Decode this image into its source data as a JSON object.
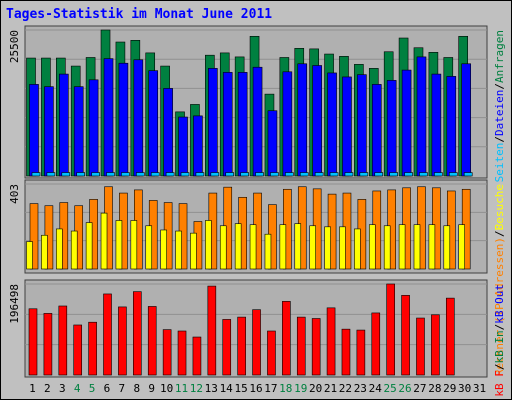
{
  "title": "Tages-Statistik im Monat June 2011",
  "colors": {
    "frame": "#c0c0c0",
    "plot_bg": "#b0b0b0",
    "anfragen": "#008040",
    "dateien": "#0000ff",
    "seiten": "#00c0ff",
    "rechner": "#ff8000",
    "besuche": "#ffff00",
    "kb_in": "#ff0000",
    "title": "#0000ff",
    "weekend_label": "#008040"
  },
  "chart_data": [
    {
      "type": "bar",
      "panel": "top",
      "ytick": "25500",
      "ymax": 25500,
      "series": [
        {
          "name": "Anfragen",
          "color": "#008040",
          "values": [
            20600,
            20600,
            20600,
            19200,
            20700,
            25500,
            23400,
            23700,
            21500,
            19200,
            11200,
            12500,
            21100,
            21500,
            20800,
            24400,
            14300,
            20700,
            22300,
            22200,
            21300,
            20900,
            19500,
            18800,
            21700,
            24100,
            22400,
            21600,
            20700,
            24400
          ]
        },
        {
          "name": "Dateien",
          "color": "#0000ff",
          "values": [
            16000,
            15600,
            17800,
            15600,
            16800,
            20500,
            19700,
            20300,
            18400,
            15300,
            10300,
            10500,
            18800,
            18100,
            18100,
            19000,
            11400,
            18200,
            19600,
            19300,
            18000,
            17300,
            17700,
            16000,
            16700,
            18500,
            20800,
            17800,
            17400,
            19600
          ]
        },
        {
          "name": "Seiten",
          "color": "#00c0ff",
          "values": [
            600,
            600,
            600,
            600,
            600,
            600,
            600,
            600,
            600,
            600,
            600,
            600,
            600,
            600,
            600,
            600,
            600,
            600,
            600,
            600,
            600,
            600,
            600,
            600,
            600,
            600,
            600,
            600,
            600,
            600
          ]
        }
      ]
    },
    {
      "type": "bar",
      "panel": "middle",
      "ytick": "403",
      "ymax": 403,
      "series": [
        {
          "name": "Rechner",
          "color": "#ff8000",
          "values": [
            310,
            300,
            315,
            300,
            330,
            390,
            360,
            375,
            325,
            315,
            310,
            225,
            360,
            388,
            340,
            360,
            305,
            378,
            390,
            380,
            355,
            360,
            330,
            370,
            375,
            385,
            390,
            385,
            370,
            378
          ]
        },
        {
          "name": "Besuche",
          "color": "#ffff00",
          "values": [
            130,
            160,
            190,
            180,
            220,
            265,
            230,
            230,
            205,
            185,
            180,
            170,
            230,
            205,
            215,
            210,
            165,
            210,
            215,
            205,
            200,
            200,
            190,
            210,
            205,
            210,
            210,
            210,
            205,
            210
          ]
        }
      ]
    },
    {
      "type": "bar",
      "panel": "bottom",
      "ytick": "196498",
      "ymax": 196498,
      "series": [
        {
          "name": "kB F",
          "color": "#ff0000",
          "values": [
            143000,
            133000,
            149000,
            108000,
            114000,
            175000,
            147000,
            180000,
            148000,
            98000,
            95000,
            82000,
            192000,
            120000,
            125000,
            141000,
            95000,
            159000,
            125000,
            122000,
            145000,
            99000,
            97000,
            134000,
            196498,
            172000,
            123000,
            130000,
            166000,
            0
          ]
        }
      ]
    }
  ],
  "x_labels": [
    "1",
    "2",
    "3",
    "4",
    "5",
    "6",
    "7",
    "8",
    "9",
    "10",
    "11",
    "12",
    "13",
    "14",
    "15",
    "16",
    "17",
    "18",
    "19",
    "20",
    "21",
    "22",
    "23",
    "24",
    "25",
    "26",
    "27",
    "28",
    "29",
    "30",
    "31"
  ],
  "weekend_days": [
    4,
    5,
    11,
    12,
    18,
    19,
    25,
    26
  ],
  "legend_right": {
    "top": [
      {
        "text": "Seiten",
        "color": "#00c0ff"
      },
      {
        "text": "/",
        "color": "#000000"
      },
      {
        "text": "Dateien",
        "color": "#0000ff"
      },
      {
        "text": "/",
        "color": "#000000"
      },
      {
        "text": "Anfragen",
        "color": "#008040"
      }
    ],
    "middle": [
      {
        "text": "Rechner (IP-Adressen)",
        "color": "#ff8000"
      },
      {
        "text": "/",
        "color": "#000000"
      },
      {
        "text": "Besuche",
        "color": "#ffff00"
      }
    ],
    "bottom": [
      {
        "text": "kB F",
        "color": "#ff0000"
      },
      {
        "text": "/",
        "color": "#000000"
      },
      {
        "text": "kB In",
        "color": "#008040"
      },
      {
        "text": "/",
        "color": "#000000"
      },
      {
        "text": "kB Out",
        "color": "#0000ff"
      }
    ]
  }
}
